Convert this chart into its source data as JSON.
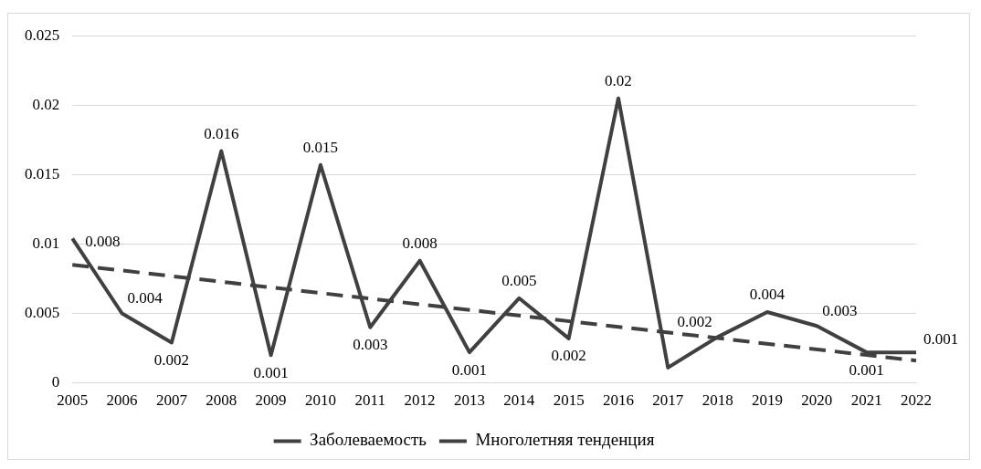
{
  "chart_data": {
    "type": "line",
    "categories": [
      "2005",
      "2006",
      "2007",
      "2008",
      "2009",
      "2010",
      "2011",
      "2012",
      "2013",
      "2014",
      "2015",
      "2016",
      "2017",
      "2018",
      "2019",
      "2020",
      "2021",
      "2022"
    ],
    "series": [
      {
        "name": "Заболеваемость",
        "color": "#404040",
        "line_style": "solid",
        "values": [
          0.0104,
          0.005,
          0.0029,
          0.0167,
          0.002,
          0.0157,
          0.004,
          0.0088,
          0.0022,
          0.0061,
          0.0032,
          0.0205,
          0.0011,
          0.0033,
          0.0051,
          0.0041,
          0.0022,
          0.0022
        ]
      },
      {
        "name": "Многолетняя тенденция",
        "color": "#404040",
        "line_style": "dashed",
        "values": [
          0.0085,
          null,
          null,
          null,
          null,
          null,
          null,
          null,
          null,
          null,
          null,
          null,
          null,
          null,
          null,
          null,
          null,
          0.0016
        ]
      }
    ],
    "annotations": [
      {
        "text": "0.008",
        "x": "2005",
        "y": 0.0104
      },
      {
        "text": "0.004",
        "x": "2006",
        "y": 0.005
      },
      {
        "text": "0.002",
        "x": "2007",
        "y": 0.0029
      },
      {
        "text": "0.016",
        "x": "2008",
        "y": 0.0167
      },
      {
        "text": "0.001",
        "x": "2009",
        "y": 0.002
      },
      {
        "text": "0.015",
        "x": "2010",
        "y": 0.0157
      },
      {
        "text": "0.003",
        "x": "2011",
        "y": 0.004
      },
      {
        "text": "0.008",
        "x": "2012",
        "y": 0.0088
      },
      {
        "text": "0.001",
        "x": "2013",
        "y": 0.0022
      },
      {
        "text": "0.005",
        "x": "2014",
        "y": 0.0061
      },
      {
        "text": "0.002",
        "x": "2015",
        "y": 0.0032
      },
      {
        "text": "0.02",
        "x": "2016",
        "y": 0.0205
      },
      {
        "text": "0.002",
        "x": "2018",
        "y": 0.0033
      },
      {
        "text": "0.004",
        "x": "2019",
        "y": 0.0051
      },
      {
        "text": "0.003",
        "x": "2020",
        "y": 0.0041
      },
      {
        "text": "0.001",
        "x": "2021",
        "y": 0.0022
      },
      {
        "text": "0.001",
        "x": "2022",
        "y": 0.0022
      }
    ],
    "ylim": [
      0,
      0.025
    ],
    "yticks": [
      0,
      0.005,
      0.01,
      0.015,
      0.02,
      0.025
    ],
    "grid": "y",
    "legend": "bottom",
    "marker": "none"
  }
}
